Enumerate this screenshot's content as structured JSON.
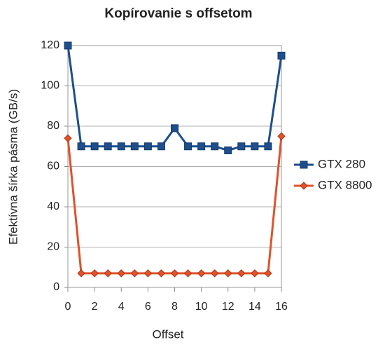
{
  "chart_data": {
    "type": "line",
    "title": "Kopírovanie s offsetom",
    "x_label": "Offset",
    "y_label": "Efektívna šírka pásma (GB/s)",
    "x": [
      0,
      1,
      2,
      3,
      4,
      5,
      6,
      7,
      8,
      9,
      10,
      11,
      12,
      13,
      14,
      15,
      16
    ],
    "series": [
      {
        "name": "GTX 280",
        "color": "#1f4e8c",
        "marker": "square",
        "values": [
          120,
          70,
          70,
          70,
          70,
          70,
          70,
          70,
          79,
          70,
          70,
          70,
          68,
          70,
          70,
          70,
          115
        ]
      },
      {
        "name": "GTX 8800",
        "color": "#e0522a",
        "marker": "diamond",
        "values": [
          74,
          7,
          7,
          7,
          7,
          7,
          7,
          7,
          7,
          7,
          7,
          7,
          7,
          7,
          7,
          7,
          75
        ]
      }
    ],
    "xlim": [
      0,
      16
    ],
    "xticks": [
      0,
      2,
      4,
      6,
      8,
      10,
      12,
      14,
      16
    ],
    "ylim": [
      0,
      120
    ],
    "yticks": [
      0,
      20,
      40,
      60,
      80,
      100,
      120
    ],
    "grid": true,
    "legend": "right"
  }
}
